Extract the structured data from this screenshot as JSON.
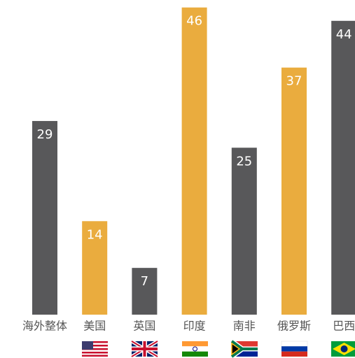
{
  "chart_data": {
    "type": "bar",
    "categories": [
      "海外整体",
      "美国",
      "英国",
      "印度",
      "南非",
      "俄罗斯",
      "巴西"
    ],
    "values": [
      29,
      14,
      7,
      46,
      25,
      37,
      44
    ],
    "colors": [
      "#58585a",
      "#eaac3e",
      "#58585a",
      "#eaac3e",
      "#58585a",
      "#eaac3e",
      "#58585a"
    ]
  }
}
